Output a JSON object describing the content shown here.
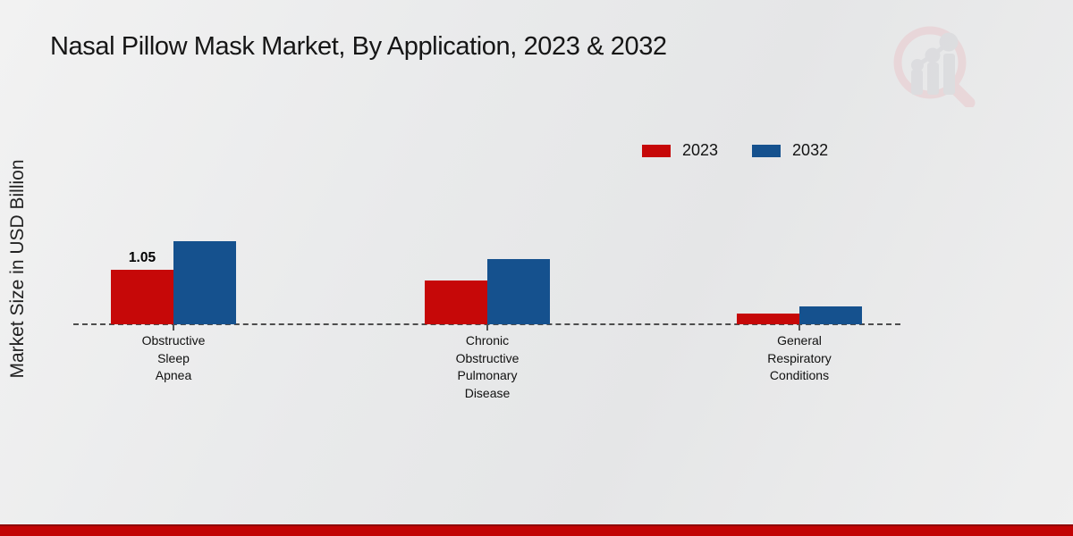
{
  "title": "Nasal Pillow Mask Market, By Application, 2023 & 2032",
  "y_axis_label": "Market Size in USD Billion",
  "legend": [
    {
      "label": "2023",
      "color": "#c60808"
    },
    {
      "label": "2032",
      "color": "#15518e"
    }
  ],
  "colors": {
    "series_2023": "#c60808",
    "series_2032": "#15518e",
    "baseline": "#4d4d4d",
    "footer_strip": "#c20404",
    "background": "#eaeaeb"
  },
  "watermark": {
    "name": "market-research-logo"
  },
  "chart_data": {
    "type": "bar",
    "categories": [
      "Obstructive\nSleep\nApnea",
      "Chronic\nObstructive\nPulmonary\nDisease",
      "General\nRespiratory\nConditions"
    ],
    "series": [
      {
        "name": "2023",
        "color": "#c60808",
        "values": [
          1.05,
          0.85,
          0.2
        ]
      },
      {
        "name": "2032",
        "color": "#15518e",
        "values": [
          1.6,
          1.25,
          0.35
        ]
      }
    ],
    "data_labels": [
      {
        "series": "2023",
        "category_index": 0,
        "text": "1.05"
      }
    ],
    "title": "Nasal Pillow Mask Market, By Application, 2023 & 2032",
    "xlabel": "",
    "ylabel": "Market Size in USD Billion",
    "ylim": [
      0,
      1.8
    ],
    "grid": false,
    "baseline_style": "dashed",
    "legend_position": "top-right"
  }
}
